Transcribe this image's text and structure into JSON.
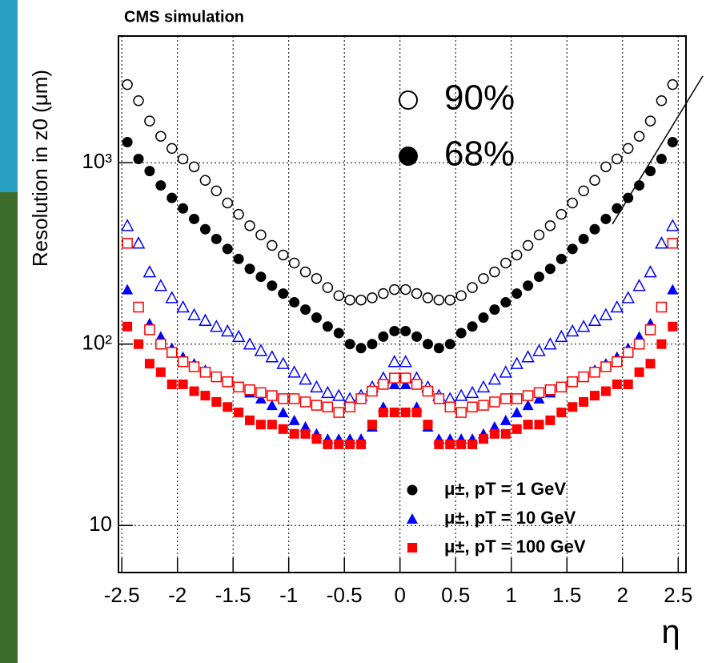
{
  "chart_data": {
    "type": "scatter",
    "title": "CMS simulation",
    "y_label": "Resolution in z0 (μm)",
    "x_label": "η",
    "annotations": [
      "90%",
      "68%"
    ],
    "log_y": true,
    "grid": true,
    "xlim": [
      -2.53,
      2.57
    ],
    "xticks": [
      -2.5,
      -2,
      -1.5,
      -1,
      -0.5,
      0,
      0.5,
      1,
      1.5,
      2,
      2.5
    ],
    "ylim": [
      5.5,
      5000
    ],
    "yticks": [
      10,
      {
        "value": 100,
        "label": "10²"
      },
      {
        "value": 1000,
        "label": "10³"
      }
    ],
    "x": [
      -2.45,
      -2.35,
      -2.25,
      -2.15,
      -2.05,
      -1.95,
      -1.85,
      -1.75,
      -1.65,
      -1.55,
      -1.45,
      -1.35,
      -1.25,
      -1.15,
      -1.05,
      -0.95,
      -0.85,
      -0.75,
      -0.65,
      -0.55,
      -0.45,
      -0.35,
      -0.25,
      -0.15,
      -0.05,
      0.05,
      0.15,
      0.25,
      0.35,
      0.45,
      0.55,
      0.65,
      0.75,
      0.85,
      0.95,
      1.05,
      1.15,
      1.25,
      1.35,
      1.45,
      1.55,
      1.65,
      1.75,
      1.85,
      1.95,
      2.05,
      2.15,
      2.25,
      2.35,
      2.45
    ],
    "series": [
      {
        "name": "μ±, pT = 1 GeV",
        "marker": "circle",
        "filled": true,
        "color": "#000000",
        "values": [
          1300,
          1050,
          900,
          750,
          640,
          560,
          490,
          430,
          380,
          335,
          295,
          260,
          235,
          210,
          190,
          170,
          155,
          140,
          125,
          115,
          100,
          95,
          100,
          110,
          118,
          118,
          110,
          100,
          95,
          100,
          115,
          125,
          140,
          155,
          170,
          190,
          210,
          235,
          260,
          295,
          335,
          380,
          430,
          490,
          560,
          640,
          750,
          900,
          1050,
          1300
        ]
      },
      {
        "marker": "circle",
        "filled": false,
        "color": "#000000",
        "values": [
          2700,
          2200,
          1700,
          1400,
          1200,
          1050,
          950,
          800,
          700,
          600,
          520,
          450,
          400,
          350,
          310,
          280,
          250,
          230,
          205,
          185,
          175,
          175,
          180,
          190,
          200,
          200,
          190,
          180,
          175,
          175,
          185,
          205,
          230,
          250,
          280,
          310,
          350,
          400,
          450,
          520,
          600,
          700,
          800,
          950,
          1050,
          1200,
          1400,
          1700,
          2200,
          2700
        ]
      },
      {
        "name": "μ±, pT = 10 GeV",
        "marker": "triangle",
        "filled": true,
        "color": "#0000ff",
        "values": [
          200,
          160,
          130,
          110,
          95,
          85,
          78,
          72,
          66,
          62,
          58,
          54,
          50,
          46,
          42,
          38,
          35,
          32,
          30,
          30,
          30,
          30,
          35,
          45,
          60,
          60,
          45,
          35,
          30,
          30,
          30,
          30,
          32,
          35,
          38,
          42,
          46,
          50,
          54,
          58,
          62,
          66,
          72,
          78,
          85,
          95,
          110,
          130,
          160,
          200
        ]
      },
      {
        "marker": "triangle",
        "filled": false,
        "color": "#0000ff",
        "values": [
          450,
          360,
          250,
          210,
          180,
          160,
          145,
          135,
          125,
          118,
          110,
          100,
          92,
          85,
          78,
          70,
          64,
          58,
          54,
          52,
          50,
          52,
          58,
          65,
          80,
          80,
          65,
          58,
          52,
          50,
          52,
          54,
          58,
          64,
          70,
          78,
          85,
          92,
          100,
          110,
          118,
          125,
          135,
          145,
          160,
          180,
          210,
          250,
          360,
          450
        ]
      },
      {
        "name": "μ±, pT = 100 GeV",
        "marker": "square",
        "filled": true,
        "color": "#ff0000",
        "values": [
          125,
          100,
          78,
          70,
          60,
          60,
          55,
          52,
          48,
          45,
          42,
          38,
          36,
          36,
          34,
          32,
          32,
          30,
          28,
          28,
          28,
          28,
          36,
          42,
          42,
          42,
          42,
          36,
          28,
          28,
          28,
          28,
          30,
          32,
          32,
          34,
          36,
          36,
          38,
          42,
          45,
          48,
          52,
          55,
          60,
          60,
          70,
          78,
          100,
          125
        ]
      },
      {
        "marker": "square",
        "filled": false,
        "color": "#ff0000",
        "values": [
          360,
          160,
          120,
          100,
          90,
          80,
          75,
          70,
          66,
          62,
          58,
          56,
          54,
          52,
          50,
          50,
          48,
          46,
          45,
          42,
          45,
          50,
          55,
          60,
          65,
          65,
          60,
          55,
          50,
          45,
          42,
          45,
          46,
          48,
          50,
          50,
          52,
          54,
          56,
          58,
          62,
          66,
          70,
          75,
          80,
          90,
          100,
          120,
          160,
          360
        ]
      }
    ]
  }
}
